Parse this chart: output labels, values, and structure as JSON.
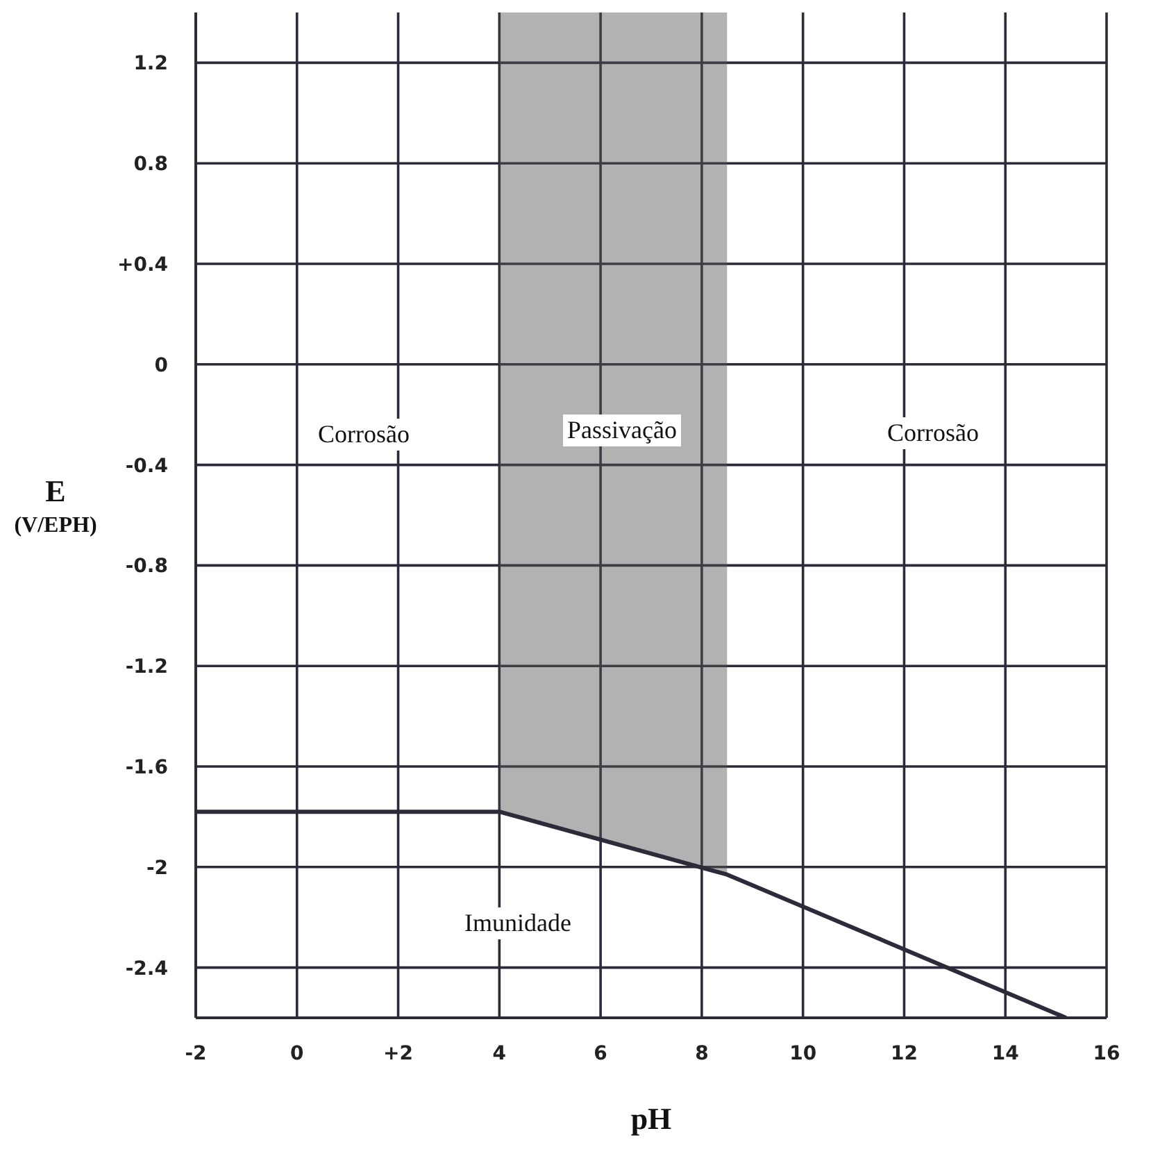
{
  "chart_data": {
    "type": "line",
    "xlabel": "pH",
    "ylabel": "E (V/EPH)",
    "xlim": [
      -2,
      16
    ],
    "xticks": [
      -2,
      0,
      {
        "value": 2,
        "label": "+2"
      },
      4,
      6,
      8,
      10,
      12,
      14,
      16
    ],
    "ylim": [
      -2.6,
      1.4
    ],
    "yticks": [
      -2.4,
      -2.0,
      -1.6,
      -1.2,
      -0.8,
      {
        "value": 0.4,
        "label": "+0.4"
      },
      0,
      -0.4,
      0.8,
      1.2
    ],
    "grid": true,
    "bands": [
      {
        "axis": "x",
        "from": 4,
        "to": 8.5,
        "color": "#555555"
      }
    ],
    "series": [
      {
        "color": "#2b2b3a",
        "x": [
          -2,
          4,
          8.5,
          15.2
        ],
        "values": [
          -1.78,
          -1.78,
          -2.03,
          -2.6
        ]
      }
    ],
    "annotations": [
      "Corrosão",
      "Passivação",
      "Corrosão",
      "Imunidade"
    ]
  }
}
